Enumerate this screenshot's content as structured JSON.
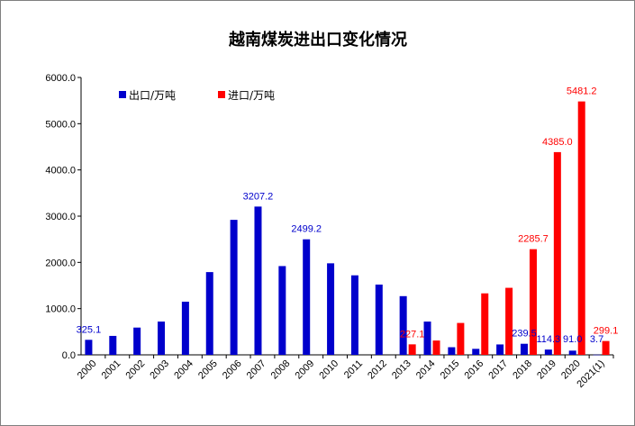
{
  "chart_data": {
    "type": "bar",
    "title": "越南煤炭进出口变化情况",
    "categories": [
      "2000",
      "2001",
      "2002",
      "2003",
      "2004",
      "2005",
      "2006",
      "2007",
      "2008",
      "2009",
      "2010",
      "2011",
      "2012",
      "2013",
      "2014",
      "2015",
      "2016",
      "2017",
      "2018",
      "2019",
      "2020",
      "2021(1)"
    ],
    "series": [
      {
        "name": "出口/万吨",
        "color": "#0000cc",
        "values": [
          325.1,
          410,
          590,
          720,
          1150,
          1790,
          2920,
          3207.2,
          1920,
          2499.2,
          1980,
          1720,
          1520,
          1270,
          720,
          165,
          130,
          225,
          239.5,
          114.3,
          91.0,
          3.7
        ]
      },
      {
        "name": "进口/万吨",
        "color": "#ff0000",
        "values": [
          null,
          null,
          null,
          null,
          null,
          null,
          null,
          null,
          null,
          null,
          null,
          null,
          null,
          227.1,
          310,
          690,
          1330,
          1450,
          2285.7,
          4385.0,
          5481.2,
          299.1
        ]
      }
    ],
    "data_labels": {
      "export": [
        {
          "index": 0,
          "text": "325.1"
        },
        {
          "index": 7,
          "text": "3207.2"
        },
        {
          "index": 9,
          "text": "2499.2"
        },
        {
          "index": 18,
          "text": "239.5"
        },
        {
          "index": 19,
          "text": "114.3"
        },
        {
          "index": 20,
          "text": "91.0"
        },
        {
          "index": 21,
          "text": "3.7"
        }
      ],
      "import": [
        {
          "index": 13,
          "text": "227.1"
        },
        {
          "index": 18,
          "text": "2285.7"
        },
        {
          "index": 19,
          "text": "4385.0"
        },
        {
          "index": 20,
          "text": "5481.2"
        },
        {
          "index": 21,
          "text": "299.1"
        }
      ]
    },
    "yticks": [
      "0.0",
      "1000.0",
      "2000.0",
      "3000.0",
      "4000.0",
      "5000.0",
      "6000.0"
    ],
    "ylim": [
      0,
      6000
    ],
    "grid": false,
    "legend_position": "top-left"
  }
}
